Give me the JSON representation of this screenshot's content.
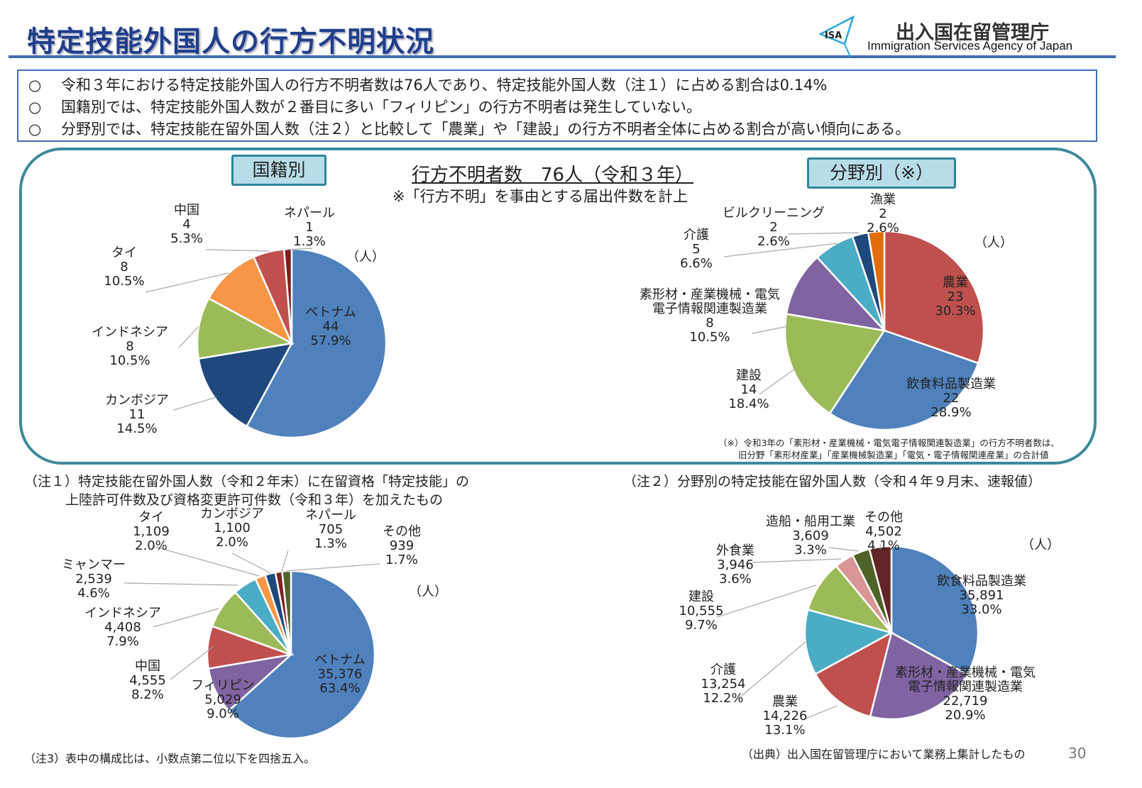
{
  "header": {
    "title": "特定技能外国人の行方不明状況",
    "logo_text": "ISA",
    "agency_jp": "出入国在留管理庁",
    "agency_en": "Immigration Services Agency of Japan"
  },
  "summary": {
    "bullet": "○",
    "lines": [
      "令和３年における特定技能外国人の行方不明者数は76人であり、特定技能外国人数（注１）に占める割合は0.14%",
      "国籍別では、特定技能外国人数が２番目に多い「フィリピン」の行方不明者は発生していない。",
      "分野別では、特定技能在留外国人数（注２）と比較して「農業」や「建設」の行方不明者全体に占める割合が高い傾向にある。"
    ]
  },
  "panel": {
    "tab_nationality": "国籍別",
    "tab_field": "分野別（※）",
    "center_title": "行方不明者数　76人（令和３年）",
    "center_sub": "※「行方不明」を事由とする届出件数を計上",
    "field_note_1": "（※）令和3年の「素形材・産業機械・電気電子情報関連製造業」の行方不明者数は、",
    "field_note_2": "旧分野「素形材産業」「産業機械製造業」「電気・電子情報関連産業」の合計値"
  },
  "notes": {
    "note1_line1": "（注１）特定技能在留外国人数（令和２年末）に在留資格「特定技能」の",
    "note1_line2": "上陸許可件数及び資格変更許可件数（令和３年）を加えたもの",
    "note2": "（注２）分野別の特定技能在留外国人数（令和４年９月末、速報値）",
    "note3": "（注3）表中の構成比は、小数点第二位以下を四捨五入。",
    "source": "（出典）出入国在留管理庁において業務上集計したもの",
    "page": "30"
  },
  "chart_data": [
    {
      "type": "pie",
      "unit": "（人）",
      "slices": [
        {
          "label": "ベトナム",
          "value": 44,
          "pct": 57.9,
          "color": "#4f81bd"
        },
        {
          "label": "カンボジア",
          "value": 11,
          "pct": 14.5,
          "color": "#1f497d"
        },
        {
          "label": "インドネシア",
          "value": 8,
          "pct": 10.5,
          "color": "#9bbb59"
        },
        {
          "label": "タイ",
          "value": 8,
          "pct": 10.5,
          "color": "#f79646"
        },
        {
          "label": "中国",
          "value": 4,
          "pct": 5.3,
          "color": "#c0504d"
        },
        {
          "label": "ネパール",
          "value": 1,
          "pct": 1.3,
          "color": "#7f1f1f"
        }
      ]
    },
    {
      "type": "pie",
      "unit": "（人）",
      "slices": [
        {
          "label": "農業",
          "value": 23,
          "pct": 30.3,
          "color": "#c0504d"
        },
        {
          "label": "飲食料品製造業",
          "value": 22,
          "pct": 28.9,
          "color": "#4f81bd"
        },
        {
          "label": "建設",
          "value": 14,
          "pct": 18.4,
          "color": "#9bbb59"
        },
        {
          "label": "素形材・産業機械・電気\n電子情報関連製造業",
          "value": 8,
          "pct": 10.5,
          "color": "#8064a2"
        },
        {
          "label": "介護",
          "value": 5,
          "pct": 6.6,
          "color": "#4bacc6"
        },
        {
          "label": "ビルクリーニング",
          "value": 2,
          "pct": 2.6,
          "color": "#1f497d"
        },
        {
          "label": "漁業",
          "value": 2,
          "pct": 2.6,
          "color": "#e46c0a"
        }
      ]
    },
    {
      "type": "pie",
      "unit": "（人）",
      "slices": [
        {
          "label": "ベトナム",
          "value": 35376,
          "pct": 63.4,
          "color": "#4f81bd"
        },
        {
          "label": "フィリピン",
          "value": 5029,
          "pct": 9.0,
          "color": "#8064a2"
        },
        {
          "label": "中国",
          "value": 4555,
          "pct": 8.2,
          "color": "#c0504d"
        },
        {
          "label": "インドネシア",
          "value": 4408,
          "pct": 7.9,
          "color": "#9bbb59"
        },
        {
          "label": "ミャンマー",
          "value": 2539,
          "pct": 4.6,
          "color": "#4bacc6"
        },
        {
          "label": "タイ",
          "value": 1109,
          "pct": 2.0,
          "color": "#f79646"
        },
        {
          "label": "カンボジア",
          "value": 1100,
          "pct": 2.0,
          "color": "#1f497d"
        },
        {
          "label": "ネパール",
          "value": 705,
          "pct": 1.3,
          "color": "#7f1f1f"
        },
        {
          "label": "その他",
          "value": 939,
          "pct": 1.7,
          "color": "#4f6228"
        }
      ]
    },
    {
      "type": "pie",
      "unit": "（人）",
      "slices": [
        {
          "label": "飲食料品製造業",
          "value": 35891,
          "pct": 33.0,
          "color": "#4f81bd"
        },
        {
          "label": "素形材・産業機械・電気\n電子情報関連製造業",
          "value": 22719,
          "pct": 20.9,
          "color": "#8064a2"
        },
        {
          "label": "農業",
          "value": 14226,
          "pct": 13.1,
          "color": "#c0504d"
        },
        {
          "label": "介護",
          "value": 13254,
          "pct": 12.2,
          "color": "#4bacc6"
        },
        {
          "label": "建設",
          "value": 10555,
          "pct": 9.7,
          "color": "#9bbb59"
        },
        {
          "label": "外食業",
          "value": 3946,
          "pct": 3.6,
          "color": "#d99694"
        },
        {
          "label": "造船・船用工業",
          "value": 3609,
          "pct": 3.3,
          "color": "#4f6228"
        },
        {
          "label": "その他",
          "value": 4502,
          "pct": 4.1,
          "color": "#632523"
        }
      ]
    }
  ]
}
